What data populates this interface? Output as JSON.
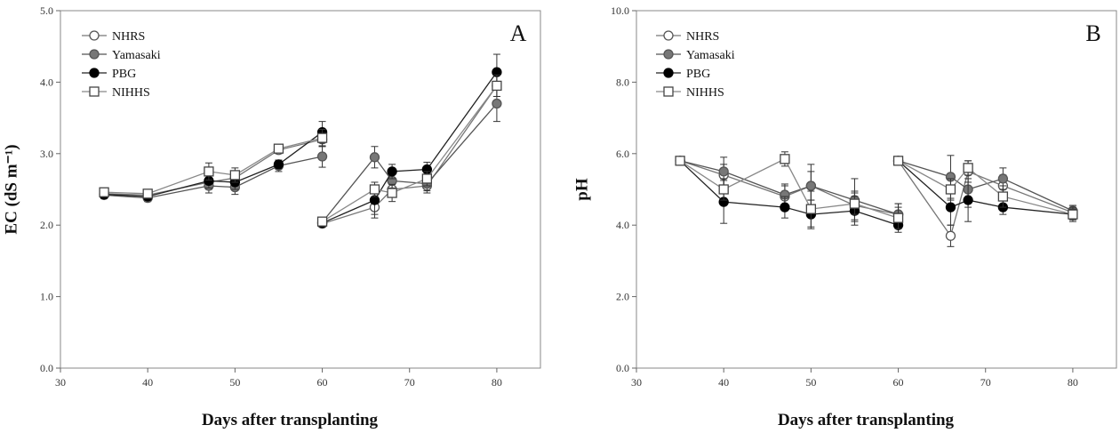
{
  "chart_data": [
    {
      "type": "line",
      "panel_label": "A",
      "xlabel": "Days after transplanting",
      "ylabel": "EC (dS m⁻¹)",
      "xlim": [
        30,
        85
      ],
      "ylim": [
        0,
        5
      ],
      "xticks": [
        "30",
        "40",
        "50",
        "60",
        "70",
        "80"
      ],
      "yticks": [
        "0.0",
        "1.0",
        "2.0",
        "3.0",
        "4.0",
        "5.0"
      ],
      "legend_position": "top-left",
      "segments": [
        [
          35,
          40,
          47,
          50,
          55,
          60
        ],
        [
          60,
          66,
          68,
          72,
          80
        ]
      ],
      "series": [
        {
          "name": "NHRS",
          "marker": "circle-open",
          "points": [
            [
              35,
              2.44
            ],
            [
              40,
              2.42
            ],
            [
              47,
              2.6
            ],
            [
              50,
              2.66
            ],
            [
              55,
              3.05
            ],
            [
              60,
              3.2
            ],
            [
              60,
              2.02
            ],
            [
              66,
              2.25
            ],
            [
              68,
              2.5
            ],
            [
              72,
              2.55
            ],
            [
              80,
              3.95
            ]
          ],
          "errors": [
            0.05,
            0.05,
            0.1,
            0.1,
            0.05,
            0.1,
            0.05,
            0.15,
            0.1,
            0.1,
            0.15
          ]
        },
        {
          "name": "Yamasaki",
          "marker": "circle-gray",
          "points": [
            [
              35,
              2.42
            ],
            [
              40,
              2.38
            ],
            [
              47,
              2.55
            ],
            [
              50,
              2.53
            ],
            [
              55,
              2.83
            ],
            [
              60,
              2.96
            ],
            [
              60,
              2.04
            ],
            [
              66,
              2.95
            ],
            [
              68,
              2.62
            ],
            [
              72,
              2.58
            ],
            [
              80,
              3.7
            ]
          ],
          "errors": [
            0.05,
            0.05,
            0.1,
            0.1,
            0.08,
            0.15,
            0.05,
            0.15,
            0.1,
            0.1,
            0.25
          ]
        },
        {
          "name": "PBG",
          "marker": "circle-filled",
          "points": [
            [
              35,
              2.43
            ],
            [
              40,
              2.4
            ],
            [
              47,
              2.62
            ],
            [
              50,
              2.6
            ],
            [
              55,
              2.85
            ],
            [
              60,
              3.3
            ],
            [
              60,
              2.03
            ],
            [
              66,
              2.35
            ],
            [
              68,
              2.75
            ],
            [
              72,
              2.78
            ],
            [
              80,
              4.14
            ]
          ],
          "errors": [
            0.05,
            0.05,
            0.1,
            0.1,
            0.06,
            0.15,
            0.05,
            0.2,
            0.1,
            0.1,
            0.25
          ]
        },
        {
          "name": "NIHHS",
          "marker": "square-open",
          "points": [
            [
              35,
              2.46
            ],
            [
              40,
              2.44
            ],
            [
              47,
              2.75
            ],
            [
              50,
              2.7
            ],
            [
              55,
              3.07
            ],
            [
              60,
              3.22
            ],
            [
              60,
              2.05
            ],
            [
              66,
              2.5
            ],
            [
              68,
              2.45
            ],
            [
              72,
              2.65
            ],
            [
              80,
              3.95
            ]
          ],
          "errors": [
            0.05,
            0.05,
            0.12,
            0.1,
            0.05,
            0.12,
            0.05,
            0.1,
            0.12,
            0.1,
            0.15
          ]
        }
      ]
    },
    {
      "type": "line",
      "panel_label": "B",
      "xlabel": "Days after transplanting",
      "ylabel": "pH",
      "xlim": [
        30,
        85
      ],
      "ylim": [
        0,
        10
      ],
      "xticks": [
        "30",
        "40",
        "50",
        "60",
        "70",
        "80"
      ],
      "yticks": [
        "0.0",
        "2.0",
        "4.0",
        "6.0",
        "8.0",
        "10.0"
      ],
      "legend_position": "top-left",
      "segments": [
        [
          35,
          40,
          47,
          50,
          55,
          60
        ],
        [
          60,
          66,
          68,
          72,
          80
        ]
      ],
      "series": [
        {
          "name": "NHRS",
          "marker": "circle-open",
          "points": [
            [
              35,
              5.8
            ],
            [
              40,
              5.4
            ],
            [
              47,
              4.8
            ],
            [
              50,
              5.1
            ],
            [
              55,
              4.55
            ],
            [
              60,
              4.3
            ],
            [
              60,
              5.8
            ],
            [
              66,
              3.7
            ],
            [
              68,
              5.5
            ],
            [
              72,
              5.1
            ],
            [
              80,
              4.35
            ]
          ],
          "errors": [
            0.05,
            0.3,
            0.3,
            0.4,
            0.4,
            0.3,
            0.05,
            0.3,
            0.3,
            0.3,
            0.2
          ]
        },
        {
          "name": "Yamasaki",
          "marker": "circle-gray",
          "points": [
            [
              35,
              5.8
            ],
            [
              40,
              5.5
            ],
            [
              47,
              4.85
            ],
            [
              50,
              5.1
            ],
            [
              55,
              4.7
            ],
            [
              60,
              4.3
            ],
            [
              60,
              5.8
            ],
            [
              66,
              5.35
            ],
            [
              68,
              5.0
            ],
            [
              72,
              5.3
            ],
            [
              80,
              4.4
            ]
          ],
          "errors": [
            0.05,
            0.4,
            0.3,
            0.6,
            0.6,
            0.3,
            0.05,
            0.6,
            0.5,
            0.3,
            0.15
          ]
        },
        {
          "name": "PBG",
          "marker": "circle-filled",
          "points": [
            [
              35,
              5.8
            ],
            [
              40,
              4.65
            ],
            [
              47,
              4.5
            ],
            [
              50,
              4.3
            ],
            [
              55,
              4.4
            ],
            [
              60,
              4.0
            ],
            [
              60,
              5.8
            ],
            [
              66,
              4.5
            ],
            [
              68,
              4.7
            ],
            [
              72,
              4.5
            ],
            [
              80,
              4.3
            ]
          ],
          "errors": [
            0.05,
            0.6,
            0.3,
            0.4,
            0.4,
            0.2,
            0.05,
            0.5,
            0.6,
            0.2,
            0.15
          ]
        },
        {
          "name": "NIHHS",
          "marker": "square-open",
          "points": [
            [
              35,
              5.8
            ],
            [
              40,
              5.0
            ],
            [
              47,
              5.85
            ],
            [
              50,
              4.45
            ],
            [
              55,
              4.6
            ],
            [
              60,
              4.2
            ],
            [
              60,
              5.8
            ],
            [
              66,
              5.0
            ],
            [
              68,
              5.6
            ],
            [
              72,
              4.8
            ],
            [
              80,
              4.3
            ]
          ],
          "errors": [
            0.05,
            0.3,
            0.2,
            0.5,
            0.3,
            0.3,
            0.05,
            0.3,
            0.2,
            0.3,
            0.2
          ]
        }
      ]
    }
  ]
}
